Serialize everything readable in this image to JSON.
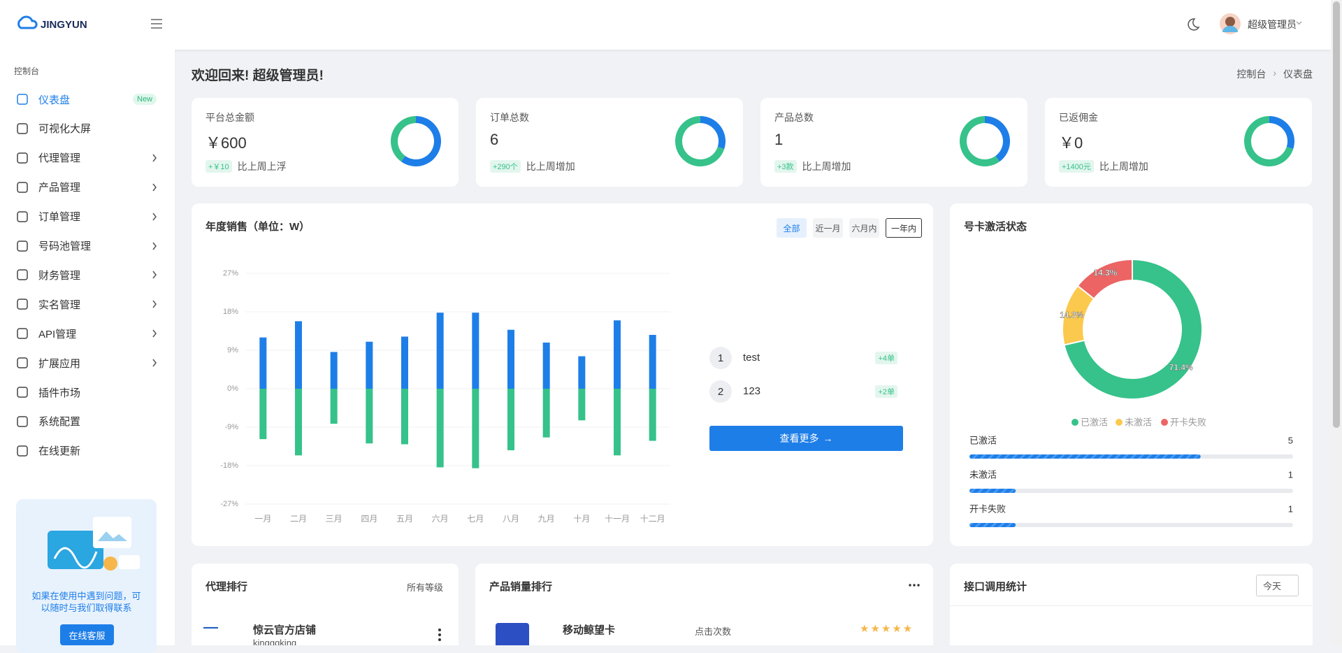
{
  "header": {
    "logo": "JINGYUN",
    "user": "超级管理员"
  },
  "sidebar": {
    "section": "控制台",
    "items": [
      {
        "label": "仪表盘",
        "badge": "New"
      },
      {
        "label": "可视化大屏"
      },
      {
        "label": "代理管理",
        "submenu": true
      },
      {
        "label": "产品管理",
        "submenu": true
      },
      {
        "label": "订单管理",
        "submenu": true
      },
      {
        "label": "号码池管理",
        "submenu": true
      },
      {
        "label": "财务管理",
        "submenu": true
      },
      {
        "label": "实名管理",
        "submenu": true
      },
      {
        "label": "API管理",
        "submenu": true
      },
      {
        "label": "扩展应用",
        "submenu": true
      },
      {
        "label": "插件市场"
      },
      {
        "label": "系统配置"
      },
      {
        "label": "在线更新"
      }
    ],
    "help": {
      "text": "如果在使用中遇到问题，可以随时与我们取得联系",
      "button": "在线客服"
    }
  },
  "page": {
    "welcome": "欢迎回来! 超级管理员!",
    "breadcrumb": [
      "控制台",
      "仪表盘"
    ]
  },
  "ring_colors": [
    "#1e7ee8",
    "#36c28a"
  ],
  "stats": [
    {
      "title": "平台总金额",
      "value": "￥600",
      "delta": "+￥10",
      "note": "比上周上浮",
      "ring": [
        60,
        40
      ]
    },
    {
      "title": "订单总数",
      "value": "6",
      "delta": "+290个",
      "note": "比上周增加",
      "ring": [
        30,
        70
      ]
    },
    {
      "title": "产品总数",
      "value": "1",
      "delta": "+3款",
      "note": "比上周增加",
      "ring": [
        40,
        60
      ]
    },
    {
      "title": "已返佣金",
      "value": "￥0",
      "delta": "+1400元",
      "note": "比上周增加",
      "ring": [
        30,
        70
      ]
    }
  ],
  "chart_data": [
    {
      "type": "bar",
      "title": "年度销售（单位：W）",
      "categories": [
        "一月",
        "二月",
        "三月",
        "四月",
        "五月",
        "六月",
        "七月",
        "八月",
        "九月",
        "十月",
        "十一月",
        "十二月"
      ],
      "series": [
        {
          "color": "#1e7ee8",
          "values": [
            12,
            15.8,
            8.6,
            11,
            12.2,
            17.8,
            17.8,
            13.8,
            10.8,
            7.6,
            16,
            12.6
          ]
        },
        {
          "color": "#36c28a",
          "values": [
            -11.8,
            -15.6,
            -8.2,
            -12.8,
            -13,
            -18.4,
            -18.6,
            -14.4,
            -11.4,
            -7.4,
            -15.6,
            -12.2
          ]
        }
      ],
      "ylim": [
        -27,
        27
      ],
      "yticks": [
        {
          "value": -27,
          "label": "-27%"
        },
        {
          "value": -18,
          "label": "-18%"
        },
        {
          "value": -9,
          "label": "-9%"
        },
        {
          "value": 0,
          "label": "0%"
        },
        {
          "value": 9,
          "label": "9%"
        },
        {
          "value": 18,
          "label": "18%"
        },
        {
          "value": 27,
          "label": "27%"
        }
      ],
      "grid": true,
      "filters": [
        "全部",
        "近一月",
        "六月内",
        "一年内"
      ],
      "ranking": [
        {
          "rank": 1,
          "name": "test",
          "delta": "+4单"
        },
        {
          "rank": 2,
          "name": "123",
          "delta": "+2单"
        }
      ],
      "more": "查看更多"
    },
    {
      "type": "pie",
      "title": "号卡激活状态",
      "donut": true,
      "categories": [
        "已激活",
        "未激活",
        "开卡失败"
      ],
      "values": [
        71.4,
        14.3,
        14.3
      ],
      "value_labels": [
        "71.4%",
        "14.3%",
        "14.3%"
      ],
      "colors": [
        "#36c28a",
        "#fbc94d",
        "#ec6464"
      ],
      "counts": [
        5,
        1,
        1
      ]
    }
  ],
  "agent_rank": {
    "title": "代理排行",
    "filter": "所有等级",
    "items": [
      {
        "name": "惊云官方店铺",
        "sub": "kingggking"
      }
    ]
  },
  "product_rank": {
    "title": "产品销量排行",
    "items": [
      {
        "name": "移动鲸望卡",
        "metric": "点击次数"
      }
    ]
  },
  "api_stats": {
    "title": "接口调用统计",
    "filter": "今天"
  }
}
